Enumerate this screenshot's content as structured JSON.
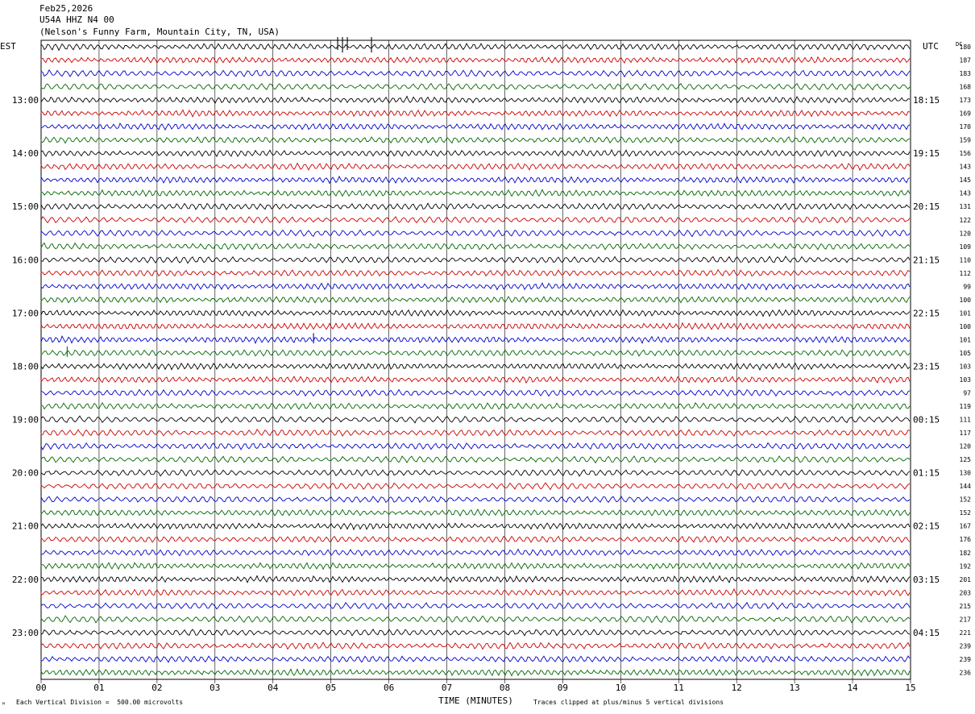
{
  "header": {
    "date": "Feb25,2026",
    "station": "U54A HHZ N4 00",
    "location": "(Nelson's Funny Farm, Mountain City, TN, USA)"
  },
  "labels": {
    "left_zone": "EST",
    "right_zone": "UTC",
    "dc": "DC",
    "x_title": "TIME (MINUTES)"
  },
  "footer": {
    "scale_note": "Each Vertical Division =  500.00 microvolts",
    "clip_note": "Traces clipped at plus/minus 5 vertical divisions",
    "corner_mark": "ᴹ"
  },
  "colors": {
    "trace_cycle": [
      "#000000",
      "#cc0000",
      "#0000cc",
      "#006600"
    ],
    "grid": "#000000"
  },
  "chart_data": {
    "type": "line",
    "subtype": "helicorder",
    "x_ticks": [
      "00",
      "01",
      "02",
      "03",
      "04",
      "05",
      "06",
      "07",
      "08",
      "09",
      "10",
      "11",
      "12",
      "13",
      "14",
      "15"
    ],
    "xlim": [
      0,
      15
    ],
    "rows_per_hour": 4,
    "left_hour_labels": [
      "13:00",
      "14:00",
      "15:00",
      "16:00",
      "17:00",
      "18:00",
      "19:00",
      "20:00",
      "21:00",
      "22:00",
      "23:00"
    ],
    "right_hour_labels": [
      "18:15",
      "19:15",
      "20:15",
      "21:15",
      "22:15",
      "23:15",
      "00:15",
      "01:15",
      "02:15",
      "03:15",
      "04:15"
    ],
    "dc_offsets": [
      180,
      187,
      183,
      168,
      173,
      169,
      170,
      159,
      156,
      143,
      145,
      143,
      131,
      122,
      120,
      109,
      110,
      112,
      99,
      100,
      101,
      100,
      101,
      105,
      103,
      103,
      97,
      119,
      111,
      117,
      120,
      125,
      130,
      144,
      152,
      152,
      167,
      176,
      182,
      192,
      201,
      203,
      215,
      217,
      221,
      239,
      239,
      236
    ],
    "events": [
      {
        "row": 0,
        "minute": 5.2,
        "note": "clipped spikes"
      },
      {
        "row": 0,
        "minute": 5.7,
        "note": "spike"
      },
      {
        "row": 22,
        "minute": 4.7,
        "note": "spike"
      },
      {
        "row": 23,
        "minute": 0.45,
        "note": "spike"
      }
    ]
  }
}
